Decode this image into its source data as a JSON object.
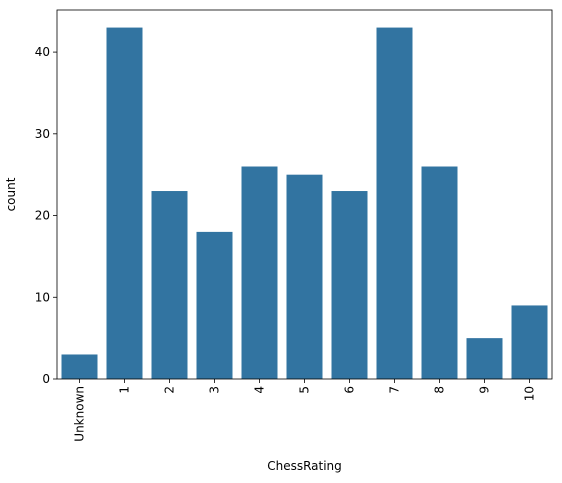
{
  "chart_data": {
    "type": "bar",
    "xlabel": "ChessRating",
    "ylabel": "count",
    "categories": [
      "Unknown",
      "1",
      "2",
      "3",
      "4",
      "5",
      "6",
      "7",
      "8",
      "9",
      "10"
    ],
    "values": [
      3,
      43,
      23,
      18,
      26,
      25,
      23,
      43,
      26,
      5,
      9
    ],
    "ylim": [
      0,
      45.15
    ],
    "yticks": [
      0,
      10,
      20,
      30,
      40
    ],
    "bar_color": "#3274a1",
    "grid": false,
    "legend": "none"
  }
}
